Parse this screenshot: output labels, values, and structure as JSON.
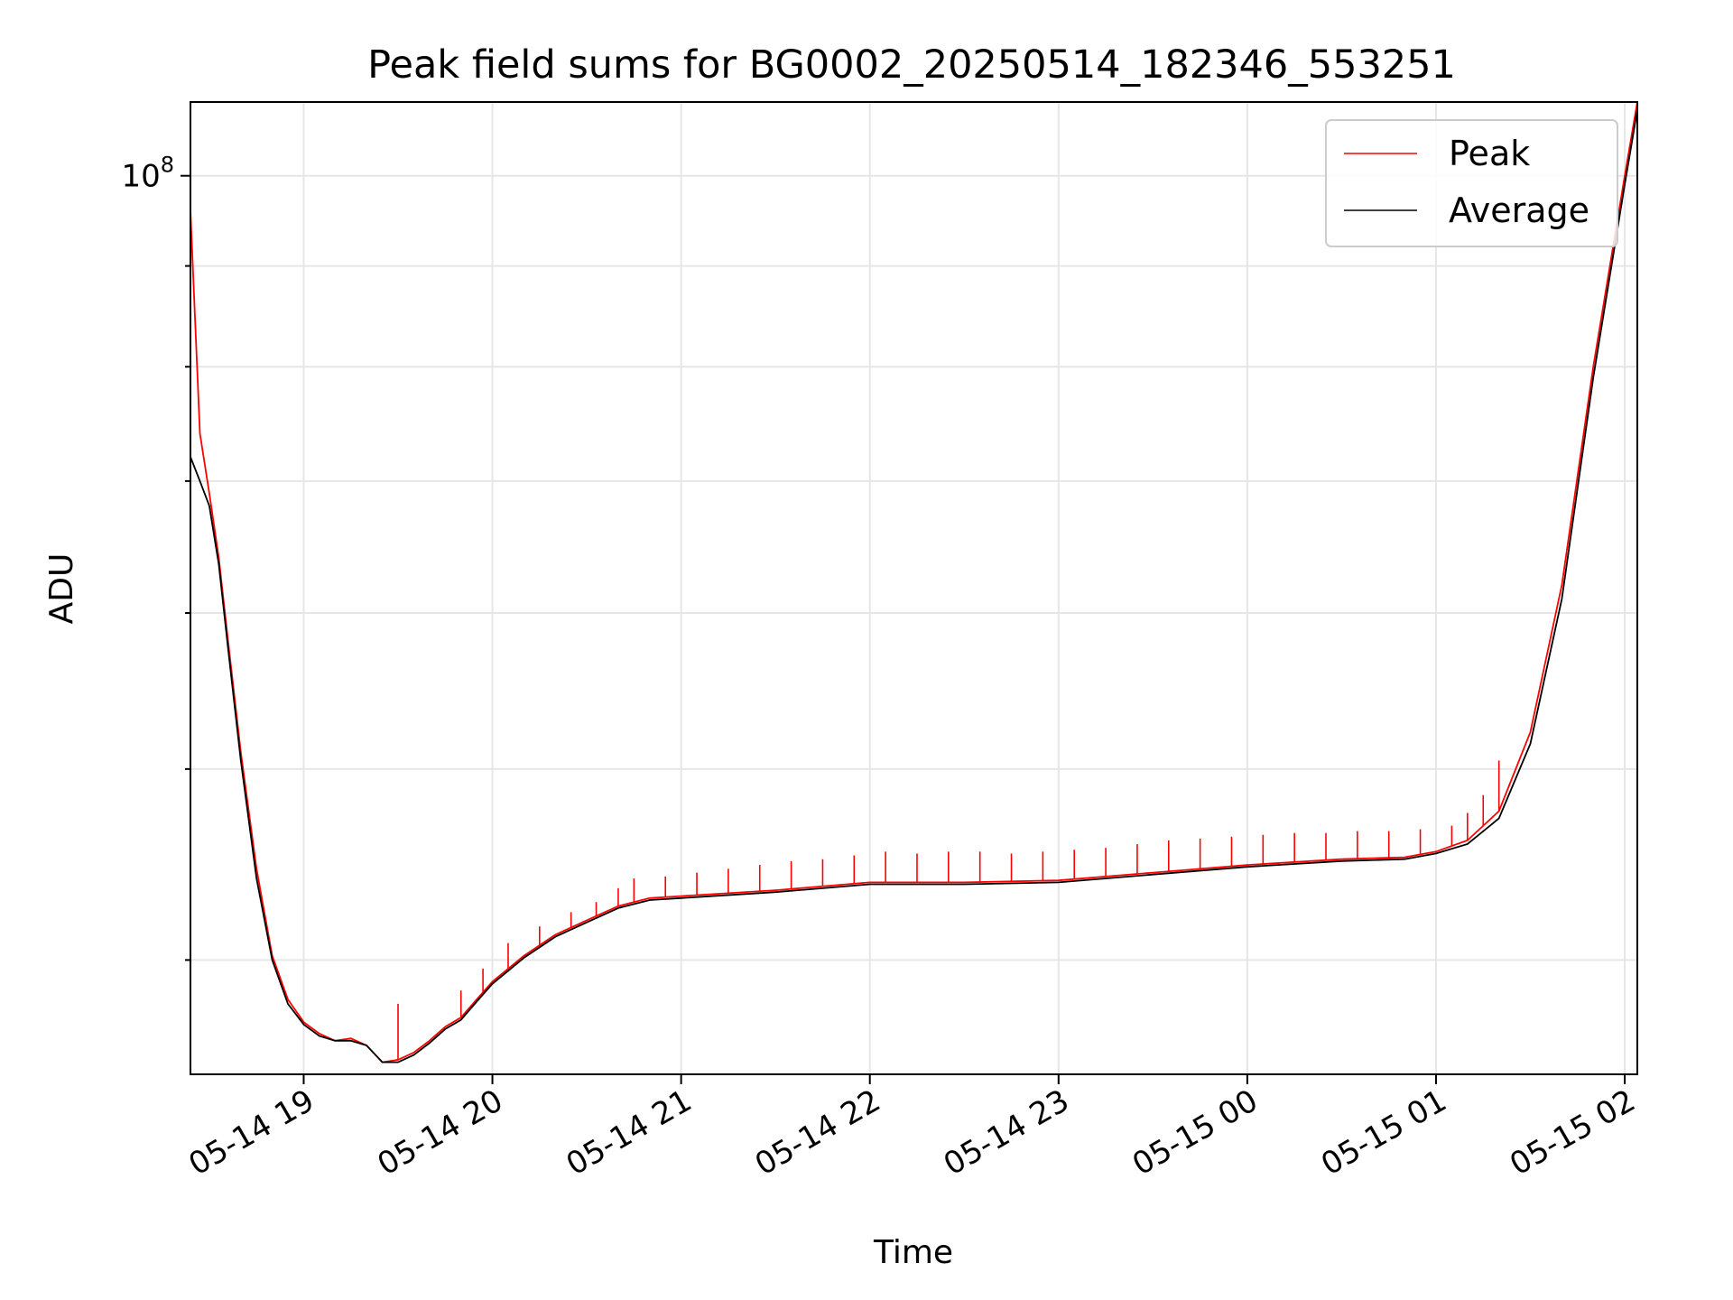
{
  "chart_data": {
    "type": "line",
    "title": "Peak field sums for BG0002_20250514_182346_553251",
    "xlabel": "Time",
    "ylabel": "ADU",
    "x_ticks": [
      "05-14 19",
      "05-14 20",
      "05-14 21",
      "05-14 22",
      "05-14 23",
      "05-15 00",
      "05-15 01",
      "05-15 02"
    ],
    "y_ticks": [
      {
        "base": "10",
        "exp": "8"
      }
    ],
    "y_scale": "log",
    "x_range": [
      "2025-05-14 18:24",
      "2025-05-15 02:04"
    ],
    "y_range": [
      35000000,
      109000000
    ],
    "grid": true,
    "legend_position": "top-right",
    "series": [
      {
        "name": "Peak",
        "color": "#ff0000",
        "x": [
          "18:24",
          "18:27",
          "18:30",
          "18:33",
          "18:36",
          "18:40",
          "18:45",
          "18:50",
          "18:55",
          "19:00",
          "19:05",
          "19:10",
          "19:15",
          "19:20",
          "19:25",
          "19:30",
          "19:35",
          "19:40",
          "19:45",
          "19:50",
          "19:55",
          "20:00",
          "20:10",
          "20:20",
          "20:30",
          "20:40",
          "20:50",
          "21:00",
          "21:30",
          "22:00",
          "22:30",
          "23:00",
          "23:30",
          "00:00",
          "00:30",
          "00:50",
          "01:00",
          "01:10",
          "01:20",
          "01:30",
          "01:40",
          "01:50",
          "02:00",
          "02:04"
        ],
        "y": [
          96000000,
          74000000,
          69000000,
          64000000,
          58000000,
          51000000,
          44500000,
          40200000,
          38200000,
          37200000,
          36700000,
          36400000,
          36500000,
          36200000,
          35500000,
          35600000,
          35900000,
          36400000,
          37000000,
          37400000,
          38200000,
          39000000,
          40200000,
          41200000,
          41900000,
          42600000,
          43000000,
          43100000,
          43400000,
          43800000,
          43800000,
          43900000,
          44300000,
          44700000,
          45000000,
          45100000,
          45400000,
          46000000,
          47600000,
          52200000,
          62000000,
          80000000,
          100000000,
          109000000
        ],
        "spikes": [
          [
            "19:30",
            38000000
          ],
          [
            "19:50",
            38600000
          ],
          [
            "19:57",
            39600000
          ],
          [
            "20:05",
            40800000
          ],
          [
            "20:15",
            41600000
          ],
          [
            "20:25",
            42300000
          ],
          [
            "20:33",
            42800000
          ],
          [
            "20:40",
            43500000
          ],
          [
            "20:45",
            44000000
          ],
          [
            "20:55",
            44100000
          ],
          [
            "21:05",
            44300000
          ],
          [
            "21:15",
            44500000
          ],
          [
            "21:25",
            44700000
          ],
          [
            "21:35",
            44900000
          ],
          [
            "21:45",
            45000000
          ],
          [
            "21:55",
            45200000
          ],
          [
            "22:05",
            45400000
          ],
          [
            "22:15",
            45300000
          ],
          [
            "22:25",
            45400000
          ],
          [
            "22:35",
            45400000
          ],
          [
            "22:45",
            45300000
          ],
          [
            "22:55",
            45400000
          ],
          [
            "23:05",
            45500000
          ],
          [
            "23:15",
            45600000
          ],
          [
            "23:25",
            45800000
          ],
          [
            "23:35",
            46000000
          ],
          [
            "23:45",
            46100000
          ],
          [
            "23:55",
            46200000
          ],
          [
            "00:05",
            46300000
          ],
          [
            "00:15",
            46400000
          ],
          [
            "00:25",
            46400000
          ],
          [
            "00:35",
            46500000
          ],
          [
            "00:45",
            46500000
          ],
          [
            "00:55",
            46600000
          ],
          [
            "01:05",
            46800000
          ],
          [
            "01:10",
            47500000
          ],
          [
            "01:15",
            48500000
          ],
          [
            "01:20",
            50500000
          ]
        ]
      },
      {
        "name": "Average",
        "color": "#000000",
        "x": [
          "18:24",
          "18:27",
          "18:30",
          "18:33",
          "18:36",
          "18:40",
          "18:45",
          "18:50",
          "18:55",
          "19:00",
          "19:05",
          "19:10",
          "19:15",
          "19:20",
          "19:25",
          "19:30",
          "19:35",
          "19:40",
          "19:45",
          "19:50",
          "19:55",
          "20:00",
          "20:10",
          "20:20",
          "20:30",
          "20:40",
          "20:50",
          "21:00",
          "21:30",
          "22:00",
          "22:30",
          "23:00",
          "23:30",
          "00:00",
          "00:30",
          "00:50",
          "01:00",
          "01:10",
          "01:20",
          "01:30",
          "01:40",
          "01:50",
          "02:00",
          "02:04"
        ],
        "y": [
          72000000,
          70000000,
          68000000,
          63500000,
          57500000,
          50500000,
          44000000,
          40000000,
          38000000,
          37100000,
          36600000,
          36400000,
          36400000,
          36200000,
          35500000,
          35500000,
          35800000,
          36300000,
          36900000,
          37300000,
          38100000,
          38900000,
          40100000,
          41100000,
          41800000,
          42500000,
          42900000,
          43000000,
          43300000,
          43700000,
          43700000,
          43800000,
          44200000,
          44600000,
          44900000,
          45000000,
          45300000,
          45800000,
          47200000,
          51500000,
          61000000,
          79000000,
          99000000,
          108000000
        ]
      }
    ]
  }
}
